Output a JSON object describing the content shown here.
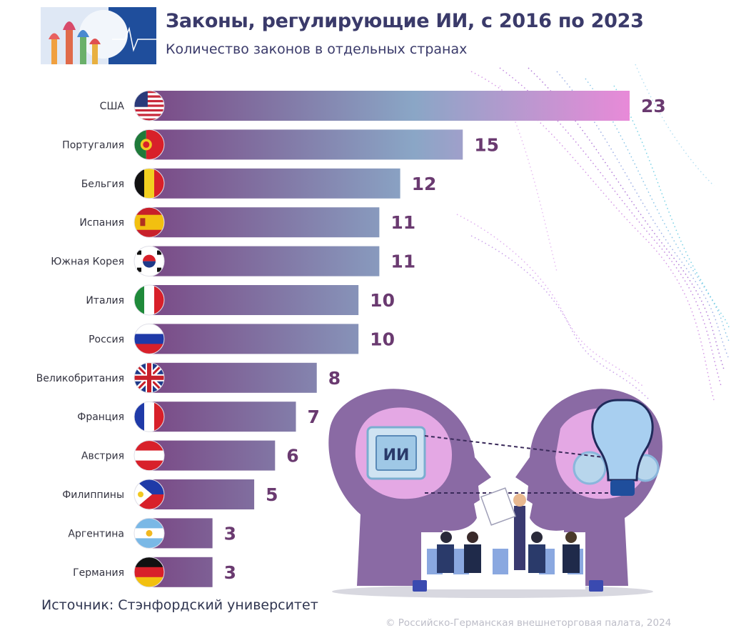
{
  "header": {
    "title": "Законы, регулирующие ИИ, с 2016 по 2023",
    "subtitle": "Количество законов в отдельных странах"
  },
  "chart_data": {
    "type": "bar",
    "orientation": "horizontal",
    "title": "Законы, регулирующие ИИ, с 2016 по 2023",
    "subtitle": "Количество законов в отдельных странах",
    "categories": [
      "США",
      "Португалия",
      "Бельгия",
      "Испания",
      "Южная Корея",
      "Италия",
      "Россия",
      "Великобритания",
      "Франция",
      "Австрия",
      "Филиппины",
      "Аргентина",
      "Германия"
    ],
    "values": [
      23,
      15,
      12,
      11,
      11,
      10,
      10,
      8,
      7,
      6,
      5,
      3,
      3
    ],
    "xlim": [
      0,
      23
    ],
    "grid": false,
    "legend": "none"
  },
  "flags": [
    "us-flag-icon",
    "portugal-flag-icon",
    "belgium-flag-icon",
    "spain-flag-icon",
    "south-korea-flag-icon",
    "italy-flag-icon",
    "russia-flag-icon",
    "uk-flag-icon",
    "france-flag-icon",
    "austria-flag-icon",
    "philippines-flag-icon",
    "argentina-flag-icon",
    "germany-flag-icon"
  ],
  "illustration": {
    "chip_label": "ИИ"
  },
  "footer": {
    "source": "Источник: Стэнфордский университет",
    "copyright": "© Российско-Германская внешнеторговая палата, 2024"
  },
  "colors": {
    "bar_start": "#7a4a86",
    "bar_mid": "#8aa6c6",
    "bar_end": "#e88ad8",
    "value_label": "#6a3a70",
    "title": "#3a3a6a"
  }
}
